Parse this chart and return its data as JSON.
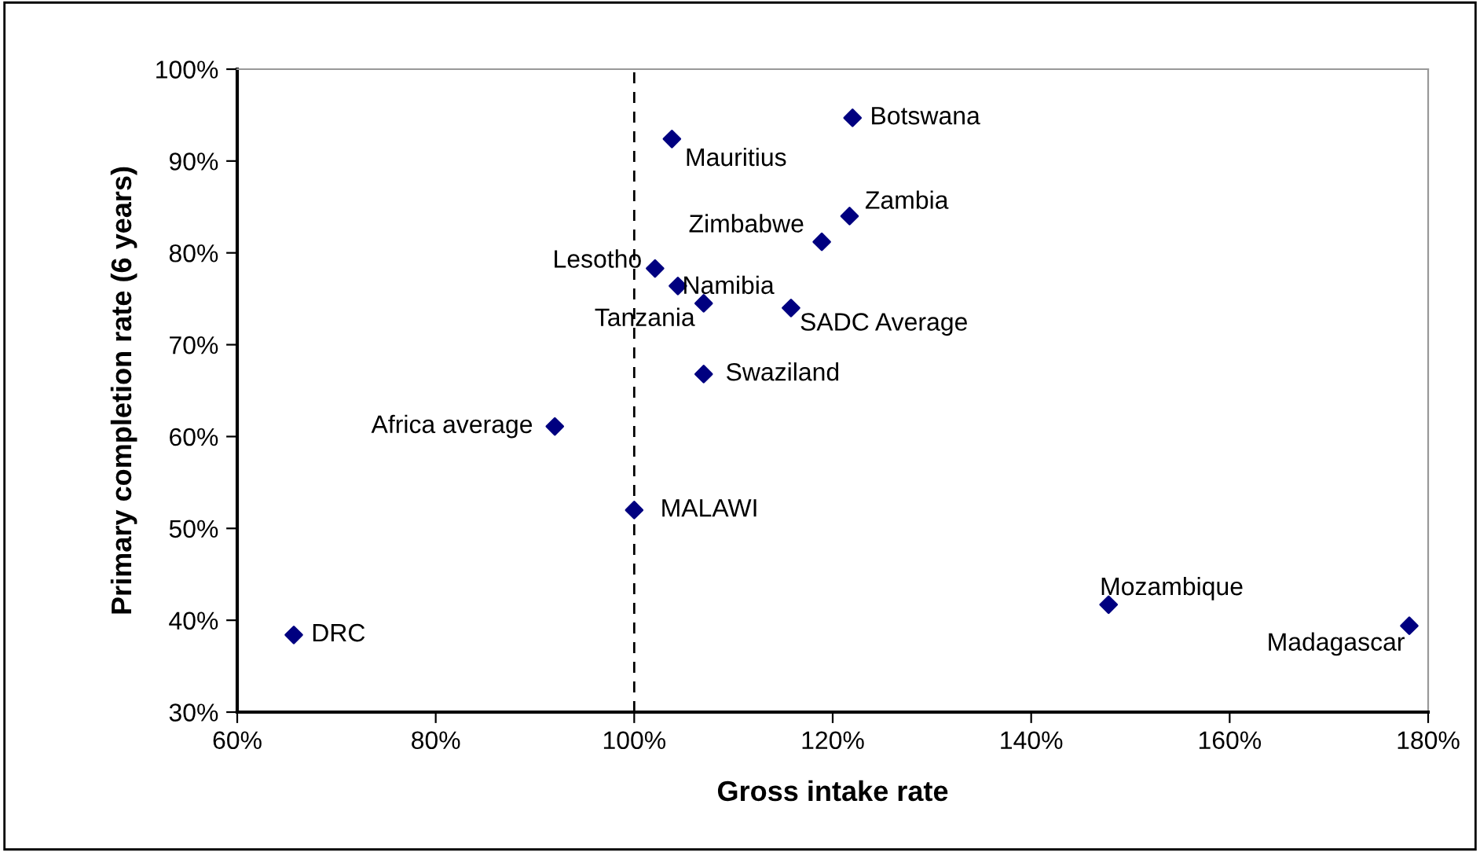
{
  "chart_data": {
    "type": "scatter",
    "xlabel": "Gross intake rate",
    "ylabel": "Primary completion rate (6 years)",
    "x": [
      122.0,
      103.8,
      121.7,
      118.9,
      102.1,
      104.4,
      107.0,
      115.8,
      107.0,
      92.0,
      100.0,
      65.7,
      147.8,
      178.1
    ],
    "series": [
      {
        "color": "#000080",
        "values": [
          94.7,
          92.4,
          84.0,
          81.2,
          78.3,
          76.4,
          74.5,
          74.0,
          66.8,
          61.1,
          52.0,
          38.4,
          41.7,
          39.4
        ]
      }
    ],
    "annotations": [
      {
        "text": "Botswana",
        "x": 122.0,
        "y": 94.7
      },
      {
        "text": "Mauritius",
        "x": 103.8,
        "y": 92.4
      },
      {
        "text": "Zambia",
        "x": 121.7,
        "y": 84.0
      },
      {
        "text": "Zimbabwe",
        "x": 118.9,
        "y": 81.2
      },
      {
        "text": "Lesotho",
        "x": 102.1,
        "y": 78.3
      },
      {
        "text": "Namibia",
        "x": 104.4,
        "y": 76.4
      },
      {
        "text": "Tanzania",
        "x": 107.0,
        "y": 74.5
      },
      {
        "text": "SADC Average",
        "x": 115.8,
        "y": 74.0
      },
      {
        "text": "Swaziland",
        "x": 107.0,
        "y": 66.8
      },
      {
        "text": "Africa average",
        "x": 92.0,
        "y": 61.1
      },
      {
        "text": "MALAWI",
        "x": 100.0,
        "y": 52.0
      },
      {
        "text": "DRC",
        "x": 65.7,
        "y": 38.4
      },
      {
        "text": "Mozambique",
        "x": 147.8,
        "y": 41.7
      },
      {
        "text": "Madagascar",
        "x": 178.1,
        "y": 39.4
      }
    ],
    "xlim": [
      60,
      180
    ],
    "xticks": [
      {
        "value": 60,
        "label": "60%"
      },
      {
        "value": 80,
        "label": "80%"
      },
      {
        "value": 100,
        "label": "100%"
      },
      {
        "value": 120,
        "label": "120%"
      },
      {
        "value": 140,
        "label": "140%"
      },
      {
        "value": 160,
        "label": "160%"
      },
      {
        "value": 180,
        "label": "180%"
      }
    ],
    "ylim": [
      30,
      100
    ],
    "yticks": [
      {
        "value": 30,
        "label": "30%"
      },
      {
        "value": 40,
        "label": "40%"
      },
      {
        "value": 50,
        "label": "50%"
      },
      {
        "value": 60,
        "label": "60%"
      },
      {
        "value": 70,
        "label": "70%"
      },
      {
        "value": 80,
        "label": "80%"
      },
      {
        "value": 90,
        "label": "90%"
      },
      {
        "value": 100,
        "label": "100%"
      }
    ],
    "ref_lines": [
      {
        "axis": "x",
        "value": 100,
        "color": "#000000",
        "line_style": "dashed"
      }
    ],
    "marker": "diamond",
    "grid": false,
    "legend": false
  }
}
